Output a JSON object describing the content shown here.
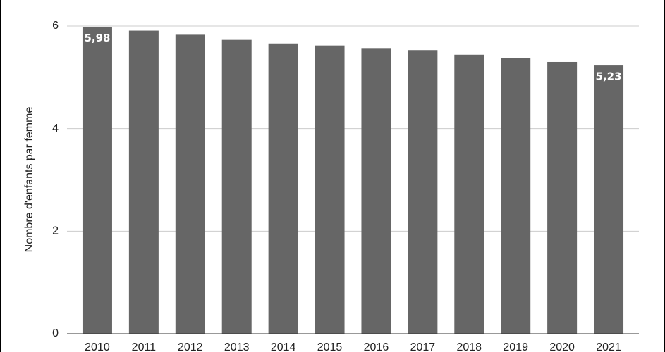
{
  "chart_data": {
    "type": "bar",
    "y_label": "Nombre d'enfants par femme",
    "categories": [
      "2010",
      "2011",
      "2012",
      "2013",
      "2014",
      "2015",
      "2016",
      "2017",
      "2018",
      "2019",
      "2020",
      "2021"
    ],
    "values": [
      5.98,
      5.91,
      5.83,
      5.73,
      5.66,
      5.62,
      5.57,
      5.53,
      5.44,
      5.37,
      5.3,
      5.23
    ],
    "value_labels": [
      "5,98",
      null,
      null,
      null,
      null,
      null,
      null,
      null,
      null,
      null,
      null,
      "5,23"
    ],
    "color": "#666666",
    "ylim": [
      0,
      6
    ],
    "yticks": [
      0,
      2,
      4,
      6
    ],
    "grid": true
  }
}
